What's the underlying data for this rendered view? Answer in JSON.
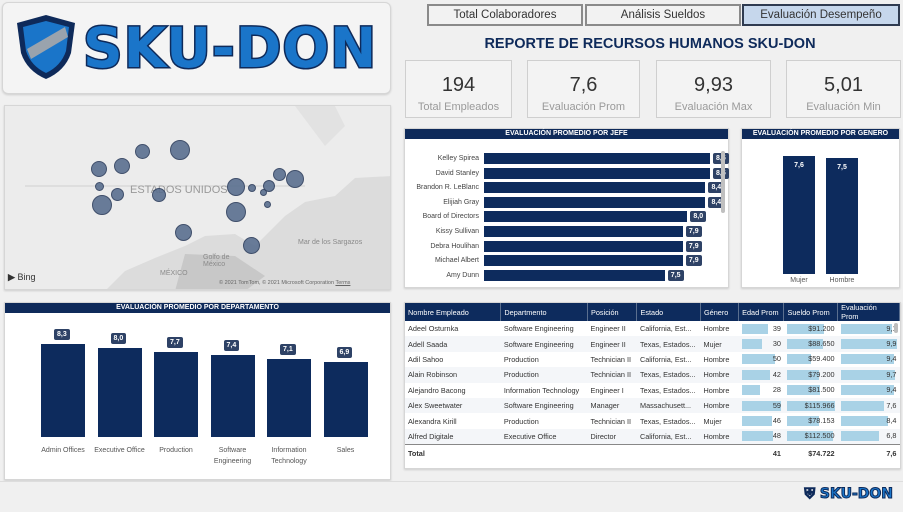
{
  "logo": {
    "text": "SKU-DON"
  },
  "tabs": [
    {
      "label": "Total Colaboradores",
      "active": false
    },
    {
      "label": "Análisis Sueldos",
      "active": false
    },
    {
      "label": "Evaluación Desempeño",
      "active": true
    }
  ],
  "report_title": "REPORTE DE RECURSOS HUMANOS SKU-DON",
  "kpis": [
    {
      "value": "194",
      "label": "Total Empleados"
    },
    {
      "value": "7,6",
      "label": "Evaluación Prom"
    },
    {
      "value": "9,93",
      "label": "Evaluación Max"
    },
    {
      "value": "5,01",
      "label": "Evaluación Min"
    }
  ],
  "map": {
    "country_label": "ESTADOS UNIDOS",
    "labels": {
      "mexico": "MÉXICO",
      "golfo": "Golfo de México",
      "sargazos": "Mar de los Sargazos"
    },
    "bing": "Bing",
    "copyright": "© 2021 TomTom, © 2021 Microsoft Corporation",
    "terms": "Terms"
  },
  "chart_data": [
    {
      "type": "bar",
      "title": "EVALUACIÓN PROMEDIO POR JEFE",
      "categories": [
        "Kelley Spirea",
        "David Stanley",
        "Brandon R. LeBlanc",
        "Elijiah Gray",
        "Board of Directors",
        "Kissy Sullivan",
        "Debra Houlihan",
        "Michael Albert",
        "Amy Dunn"
      ],
      "values": [
        8.5,
        8.5,
        8.4,
        8.4,
        8.0,
        7.9,
        7.9,
        7.9,
        7.5
      ],
      "labels": [
        "8,5",
        "8,5",
        "8,4",
        "8,4",
        "8,0",
        "7,9",
        "7,9",
        "7,9",
        "7,5"
      ]
    },
    {
      "type": "bar",
      "title": "EVALUACIÓN PROMEDIO POR GENERO",
      "categories": [
        "Mujer",
        "Hombre"
      ],
      "values": [
        7.6,
        7.5
      ],
      "labels": [
        "7,6",
        "7,5"
      ]
    },
    {
      "type": "bar",
      "title": "EVALUACIÓN PROMEDIO POR DEPARTAMENTO",
      "categories": [
        "Admin Offices",
        "Executive Office",
        "Production",
        "Software Engineering",
        "Information Technology",
        "Sales"
      ],
      "values": [
        8.3,
        8.0,
        7.7,
        7.4,
        7.1,
        6.9
      ],
      "labels": [
        "8,3",
        "8,0",
        "7,7",
        "7,4",
        "7,1",
        "6,9"
      ]
    }
  ],
  "table": {
    "headers": [
      "Nombre Empleado",
      "Departmento",
      "Posición",
      "Estado",
      "Género",
      "Edad Prom",
      "Sueldo Prom",
      "Evaluación Prom"
    ],
    "rows": [
      [
        "Adeel Osturnka",
        "Software Engineering",
        "Engineer II",
        "California, Est...",
        "Hombre",
        "39",
        "$91.200",
        "9,1"
      ],
      [
        "Adell Saada",
        "Software Engineering",
        "Engineer II",
        "Texas, Estados...",
        "Mujer",
        "30",
        "$88.650",
        "9,9"
      ],
      [
        "Adil Sahoo",
        "Production",
        "Technician II",
        "California, Est...",
        "Hombre",
        "50",
        "$59.400",
        "9,4"
      ],
      [
        "Alain Robinson",
        "Production",
        "Technician II",
        "Texas, Estados...",
        "Hombre",
        "42",
        "$79.200",
        "9,7"
      ],
      [
        "Alejandro Bacong",
        "Information Technology",
        "Engineer I",
        "Texas, Estados...",
        "Hombre",
        "28",
        "$81.500",
        "9,4"
      ],
      [
        "Alex Sweetwater",
        "Software Engineering",
        "Manager",
        "Massachusett...",
        "Hombre",
        "59",
        "$115.966",
        "7,6"
      ],
      [
        "Alexandra Kirill",
        "Production",
        "Technician II",
        "Texas, Estados...",
        "Mujer",
        "46",
        "$78.153",
        "8,4"
      ],
      [
        "Alfred Digitale",
        "Executive Office",
        "Director",
        "California, Est...",
        "Hombre",
        "48",
        "$112.500",
        "6,8"
      ]
    ],
    "bar_fractions": {
      "edad": [
        0.66,
        0.51,
        0.85,
        0.71,
        0.47,
        1.0,
        0.78,
        0.81
      ],
      "sueldo": [
        0.78,
        0.76,
        0.51,
        0.68,
        0.7,
        1.0,
        0.67,
        0.97
      ],
      "eval": [
        0.92,
        1.0,
        0.95,
        0.98,
        0.95,
        0.77,
        0.85,
        0.69
      ]
    },
    "total": {
      "label": "Total",
      "edad": "41",
      "sueldo": "$74.722",
      "eval": "7,6"
    }
  }
}
